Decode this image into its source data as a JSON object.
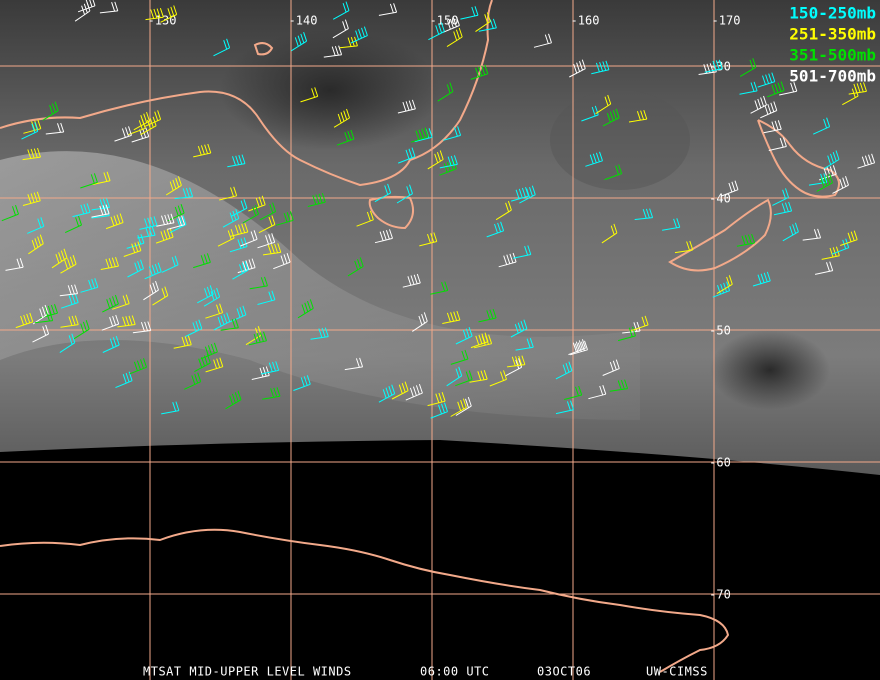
{
  "map": {
    "longitudes": [
      -130,
      -140,
      -150,
      -160,
      -170
    ],
    "latitudes": [
      -30,
      -40,
      -50,
      -60,
      -70
    ],
    "legend": [
      {
        "label": "150-250mb",
        "color": "#00ffff"
      },
      {
        "label": "251-350mb",
        "color": "#ffff00"
      },
      {
        "label": "351-500mb",
        "color": "#00e000"
      },
      {
        "label": "501-700mb",
        "color": "#ffffff"
      }
    ],
    "footer": [
      "MTSAT MID-UPPER LEVEL WINDS",
      "06:00 UTC",
      "03OCT06",
      "UW-CIMSS"
    ]
  }
}
